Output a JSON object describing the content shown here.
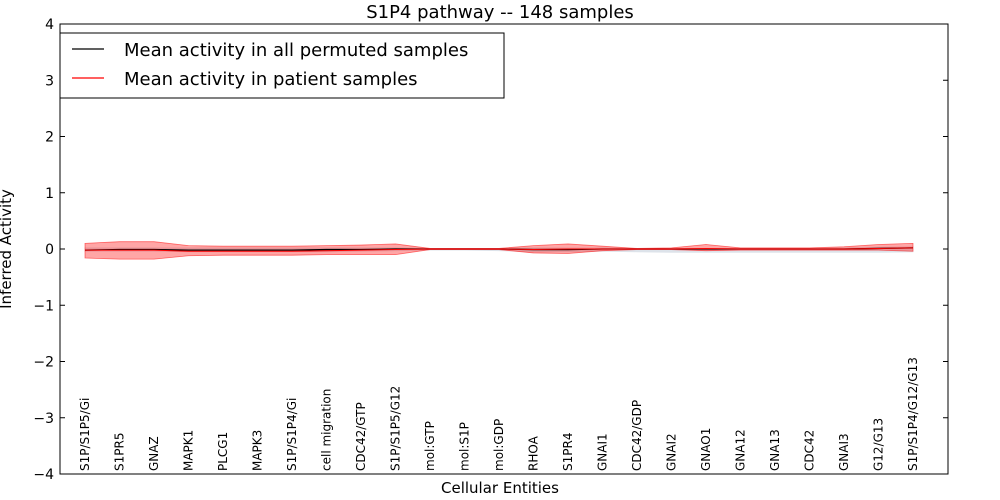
{
  "chart_data": {
    "type": "line",
    "title": "S1P4 pathway -- 148 samples",
    "xlabel": "Cellular Entities",
    "ylabel": "Inferred Activity",
    "ylim": [
      -4,
      4
    ],
    "yticks": [
      4,
      3,
      2,
      1,
      0,
      -1,
      -2,
      -3,
      -4
    ],
    "ytick_labels": [
      "4",
      "3",
      "2",
      "1",
      "0",
      "−1",
      "−2",
      "−3",
      "−4"
    ],
    "legend_position": "top-left",
    "categories": [
      "S1P/S1P5/Gi",
      "S1PR5",
      "GNAZ",
      "MAPK1",
      "PLCG1",
      "MAPK3",
      "S1P/S1P4/Gi",
      "cell migration",
      "CDC42/GTP",
      "S1P/S1P5/G12",
      "mol:GTP",
      "mol:S1P",
      "mol:GDP",
      "RHOA",
      "S1PR4",
      "GNAI1",
      "CDC42/GDP",
      "GNAI2",
      "GNAO1",
      "GNA12",
      "GNA13",
      "CDC42",
      "GNAI3",
      "G12/G13",
      "S1P/S1P4/G12/G13"
    ],
    "series": [
      {
        "name": "Mean activity in all permuted samples",
        "color": "#000000",
        "values": [
          -0.02,
          -0.01,
          -0.01,
          -0.02,
          -0.02,
          -0.02,
          -0.02,
          -0.01,
          -0.01,
          0.0,
          0.0,
          0.0,
          0.0,
          -0.01,
          -0.01,
          0.0,
          0.0,
          0.0,
          0.0,
          0.0,
          0.0,
          0.0,
          0.0,
          0.01,
          0.02
        ],
        "band_upper": [
          0.02,
          0.02,
          0.02,
          0.02,
          0.02,
          0.02,
          0.02,
          0.02,
          0.02,
          0.02,
          0.01,
          0.01,
          0.01,
          0.02,
          0.02,
          0.02,
          0.01,
          0.01,
          0.01,
          0.01,
          0.01,
          0.01,
          0.02,
          0.03,
          0.04
        ],
        "band_lower": [
          -0.04,
          -0.04,
          -0.04,
          -0.05,
          -0.05,
          -0.05,
          -0.05,
          -0.05,
          -0.04,
          -0.03,
          -0.02,
          -0.02,
          -0.03,
          -0.05,
          -0.05,
          -0.04,
          -0.05,
          -0.06,
          -0.06,
          -0.06,
          -0.06,
          -0.06,
          -0.06,
          -0.06,
          -0.05
        ],
        "band_color": "#dde3ea"
      },
      {
        "name": "Mean activity in patient samples",
        "color": "#ff0000",
        "values": [
          -0.02,
          -0.02,
          -0.02,
          -0.04,
          -0.04,
          -0.04,
          -0.04,
          -0.03,
          -0.02,
          -0.01,
          0.0,
          0.0,
          0.0,
          -0.01,
          0.0,
          0.0,
          0.0,
          0.0,
          0.01,
          0.0,
          0.0,
          0.0,
          0.0,
          0.01,
          0.02
        ],
        "band_upper": [
          0.1,
          0.13,
          0.13,
          0.06,
          0.05,
          0.05,
          0.05,
          0.06,
          0.07,
          0.09,
          0.01,
          0.01,
          0.01,
          0.06,
          0.09,
          0.05,
          0.01,
          0.02,
          0.08,
          0.02,
          0.02,
          0.02,
          0.04,
          0.08,
          0.1
        ],
        "band_lower": [
          -0.16,
          -0.18,
          -0.18,
          -0.12,
          -0.11,
          -0.11,
          -0.11,
          -0.1,
          -0.1,
          -0.1,
          -0.01,
          -0.01,
          -0.01,
          -0.07,
          -0.08,
          -0.03,
          -0.01,
          -0.01,
          -0.03,
          -0.02,
          -0.02,
          -0.02,
          -0.02,
          -0.02,
          -0.04
        ],
        "band_color": "#ff0000",
        "band_opacity": 0.35
      }
    ]
  }
}
